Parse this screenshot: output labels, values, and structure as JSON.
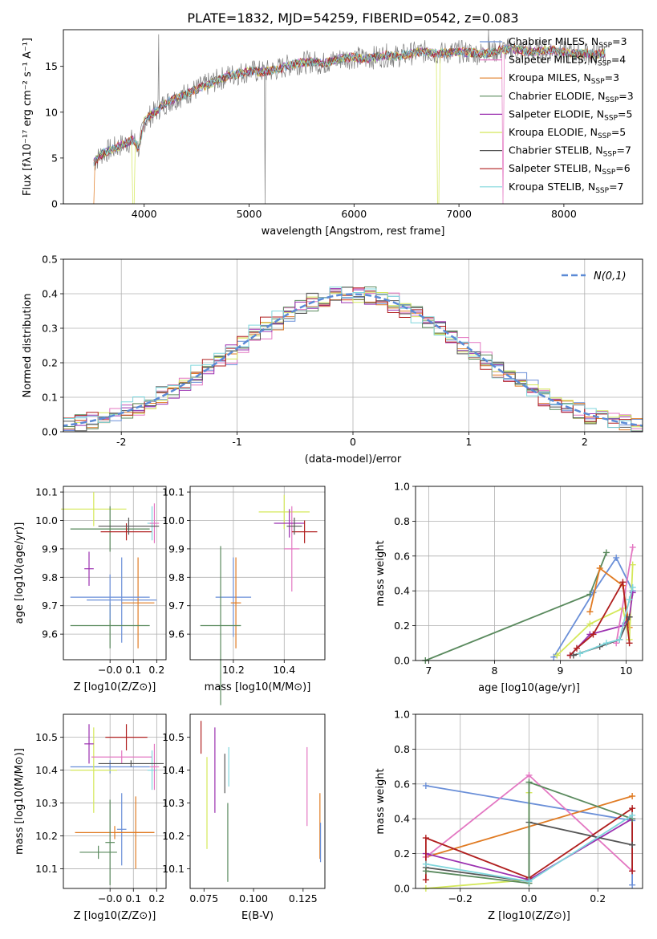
{
  "figure": {
    "title": "PLATE=1832, MJD=54259, FIBERID=0542, z=0.083"
  },
  "chart_data": [
    {
      "id": "spectrum",
      "type": "line",
      "title": "PLATE=1832, MJD=54259, FIBERID=0542, z=0.083",
      "xlabel": "wavelength [Angstrom, rest frame]",
      "ylabel": "Flux [fλ10⁻¹⁷ erg cm⁻² s⁻¹ A⁻¹]",
      "xlim": [
        3230,
        8750
      ],
      "ylim": [
        0,
        19
      ],
      "xticks": [
        4000,
        5000,
        6000,
        7000,
        8000
      ],
      "yticks": [
        0,
        5,
        10,
        15
      ],
      "grid": false,
      "legend_position": "right",
      "observed": {
        "x": [
          3520,
          3600,
          3700,
          3800,
          3900,
          3950,
          4000,
          4100,
          4200,
          4300,
          4400,
          4500,
          4600,
          4700,
          4800,
          4900,
          5000,
          5100,
          5200,
          5300,
          5400,
          5500,
          5600,
          5700,
          5800,
          5900,
          6000,
          6100,
          6200,
          6300,
          6400,
          6500,
          6600,
          6700,
          6800,
          6900,
          7000,
          7100,
          7200,
          7300,
          7400,
          7500,
          7600,
          7700,
          7800,
          7900,
          8000,
          8100,
          8200,
          8300,
          8400
        ],
        "y": [
          4.5,
          5.5,
          6.0,
          6.5,
          7.0,
          6.0,
          9.0,
          10.0,
          11.0,
          11.5,
          12.0,
          12.5,
          13.0,
          13.5,
          14.0,
          14.2,
          14.5,
          14.4,
          14.5,
          14.8,
          15.2,
          15.4,
          15.5,
          15.3,
          15.6,
          15.9,
          16.0,
          15.8,
          16.0,
          16.2,
          16.1,
          16.3,
          16.5,
          16.6,
          16.4,
          16.5,
          16.6,
          16.5,
          16.4,
          16.5,
          16.8,
          16.9,
          16.7,
          16.6,
          16.7,
          16.8,
          16.5,
          16.4,
          16.4,
          16.3,
          16.5
        ]
      },
      "series": [
        {
          "name": "Chabrier MILES, N_SSP=3",
          "nssp": "3",
          "label": "Chabrier MILES, N",
          "color": "#6a8fd8"
        },
        {
          "name": "Salpeter MILES, N_SSP=4",
          "nssp": "4",
          "label": "Salpeter MILES, N",
          "color": "#e377c2"
        },
        {
          "name": "Kroupa MILES, N_SSP=3",
          "nssp": "3",
          "label": "Kroupa MILES, N",
          "color": "#e07b23"
        },
        {
          "name": "Chabrier ELODIE, N_SSP=3",
          "nssp": "3",
          "label": "Chabrier ELODIE, N",
          "color": "#5a8a5e"
        },
        {
          "name": "Salpeter ELODIE, N_SSP=5",
          "nssp": "5",
          "label": "Salpeter ELODIE, N",
          "color": "#9b30b0"
        },
        {
          "name": "Kroupa ELODIE, N_SSP=5",
          "nssp": "5",
          "label": "Kroupa ELODIE, N",
          "color": "#d4e85a"
        },
        {
          "name": "Chabrier STELIB, N_SSP=7",
          "nssp": "7",
          "label": "Chabrier STELIB, N",
          "color": "#555555"
        },
        {
          "name": "Salpeter STELIB, N_SSP=6",
          "nssp": "6",
          "label": "Salpeter STELIB, N",
          "color": "#b01f1f"
        },
        {
          "name": "Kroupa STELIB, N_SSP=7",
          "nssp": "7",
          "label": "Kroupa STELIB, N",
          "color": "#7fd6dc"
        }
      ]
    },
    {
      "id": "residuals",
      "type": "line",
      "xlabel": "(data-model)/error",
      "ylabel": "Normed distribution",
      "xlim": [
        -2.5,
        2.5
      ],
      "ylim": [
        0,
        0.5
      ],
      "xticks": [
        -2,
        -1,
        0,
        1,
        2
      ],
      "yticks": [
        0.0,
        0.1,
        0.2,
        0.3,
        0.4,
        0.5
      ],
      "grid": true,
      "legend": "N(0,1)",
      "legend_position": "top-right",
      "reference_curve": {
        "name": "N(0,1)",
        "color": "#5b8ad6",
        "mean": 0,
        "sigma": 1
      }
    },
    {
      "id": "age-vs-Z",
      "type": "scatter",
      "xlabel": "Z [log10(Z/Z⊙)]",
      "ylabel": "age [log10(age/yr)]",
      "xlim": [
        -0.2,
        0.24
      ],
      "ylim": [
        9.51,
        10.12
      ],
      "xticks": [
        -0.0,
        0.1,
        0.2
      ],
      "xtick_labels": [
        "−0.0",
        "0.1",
        "0.2"
      ],
      "yticks": [
        9.6,
        9.7,
        9.8,
        9.9,
        10.0,
        10.1
      ],
      "grid": true,
      "points": [
        {
          "x": 0.05,
          "y": 9.72,
          "xerr": 0.15,
          "yerr": 0.15,
          "color": "#6a8fd8"
        },
        {
          "x": 0.12,
          "y": 9.71,
          "xerr": 0.07,
          "yerr": 0.16,
          "color": "#e07b23"
        },
        {
          "x": 0.0,
          "y": 9.63,
          "xerr": 0.17,
          "yerr": 0.08,
          "color": "#5a8a5e"
        },
        {
          "x": 0.0,
          "y": 9.73,
          "xerr": 0.17,
          "yerr": 0.08,
          "color": "#6a8fd8"
        },
        {
          "x": -0.07,
          "y": 10.04,
          "xerr": 0.14,
          "yerr": 0.06,
          "color": "#d4e85a"
        },
        {
          "x": 0.0,
          "y": 9.97,
          "xerr": 0.17,
          "yerr": 0.08,
          "color": "#5a8a5e"
        },
        {
          "x": -0.09,
          "y": 9.83,
          "xerr": 0.02,
          "yerr": 0.06,
          "color": "#9b30b0"
        },
        {
          "x": 0.07,
          "y": 9.96,
          "xerr": 0.11,
          "yerr": 0.03,
          "color": "#b01f1f"
        },
        {
          "x": 0.18,
          "y": 9.99,
          "xerr": 0.02,
          "yerr": 0.06,
          "color": "#7fd6dc"
        },
        {
          "x": 0.19,
          "y": 9.99,
          "xerr": 0.02,
          "yerr": 0.07,
          "color": "#e377c2"
        },
        {
          "x": 0.08,
          "y": 9.98,
          "xerr": 0.13,
          "yerr": 0.03,
          "color": "#555555"
        }
      ]
    },
    {
      "id": "age-vs-mass",
      "type": "scatter",
      "xlabel": "mass [log10(M/M⊙)]",
      "xlim": [
        10.03,
        10.56
      ],
      "ylim": [
        9.51,
        10.12
      ],
      "xticks": [
        10.2,
        10.4
      ],
      "yticks": [
        9.6,
        9.7,
        9.8,
        9.9,
        10.0,
        10.1
      ],
      "grid": true,
      "points": [
        {
          "x": 10.2,
          "y": 9.73,
          "xerr": 0.07,
          "yerr": 0.14,
          "color": "#6a8fd8"
        },
        {
          "x": 10.21,
          "y": 9.71,
          "xerr": 0.02,
          "yerr": 0.16,
          "color": "#e07b23"
        },
        {
          "x": 10.15,
          "y": 9.63,
          "xerr": 0.08,
          "yerr": 0.28,
          "color": "#5a8a5e"
        },
        {
          "x": 10.4,
          "y": 10.03,
          "xerr": 0.1,
          "yerr": 0.06,
          "color": "#d4e85a"
        },
        {
          "x": 10.43,
          "y": 9.9,
          "xerr": 0.03,
          "yerr": 0.15,
          "color": "#e377c2"
        },
        {
          "x": 10.42,
          "y": 9.99,
          "xerr": 0.06,
          "yerr": 0.05,
          "color": "#9b30b0"
        },
        {
          "x": 10.48,
          "y": 9.96,
          "xerr": 0.05,
          "yerr": 0.04,
          "color": "#b01f1f"
        },
        {
          "x": 10.44,
          "y": 9.98,
          "xerr": 0.03,
          "yerr": 0.03,
          "color": "#555555"
        }
      ]
    },
    {
      "id": "massweight-vs-age",
      "type": "line",
      "xlabel": "age [log10(age/yr)]",
      "ylabel": "mass weight",
      "xlim": [
        6.8,
        10.25
      ],
      "ylim": [
        0,
        1.0
      ],
      "xticks": [
        7,
        8,
        9,
        10
      ],
      "yticks": [
        0.0,
        0.2,
        0.4,
        0.6,
        0.8,
        1.0
      ],
      "grid": true,
      "series": [
        {
          "color": "#5a8a5e",
          "x": [
            6.95,
            9.45,
            9.7
          ],
          "y": [
            0.0,
            0.38,
            0.62
          ]
        },
        {
          "color": "#6a8fd8",
          "x": [
            8.9,
            9.5,
            9.85,
            10.1
          ],
          "y": [
            0.02,
            0.39,
            0.59,
            0.4
          ]
        },
        {
          "color": "#e07b23",
          "x": [
            9.45,
            9.6,
            9.95,
            10.05
          ],
          "y": [
            0.28,
            0.53,
            0.43,
            0.19
          ]
        },
        {
          "color": "#d4e85a",
          "x": [
            8.95,
            9.45,
            9.95,
            10.05,
            10.1
          ],
          "y": [
            0.03,
            0.21,
            0.3,
            0.12,
            0.55
          ]
        },
        {
          "color": "#9b30b0",
          "x": [
            9.15,
            9.45,
            9.95,
            10.05,
            10.1
          ],
          "y": [
            0.03,
            0.15,
            0.2,
            0.25,
            0.39
          ]
        },
        {
          "color": "#e377c2",
          "x": [
            9.85,
            10.1
          ],
          "y": [
            0.1,
            0.65
          ]
        },
        {
          "color": "#b01f1f",
          "x": [
            9.15,
            9.25,
            9.5,
            9.95,
            10.05
          ],
          "y": [
            0.03,
            0.07,
            0.15,
            0.45,
            0.1
          ]
        },
        {
          "color": "#555555",
          "x": [
            9.2,
            9.6,
            9.9,
            10.05
          ],
          "y": [
            0.03,
            0.08,
            0.12,
            0.25
          ]
        },
        {
          "color": "#7fd6dc",
          "x": [
            9.3,
            9.7,
            9.9,
            10.05,
            10.1
          ],
          "y": [
            0.04,
            0.1,
            0.12,
            0.35,
            0.42
          ]
        }
      ]
    },
    {
      "id": "mass-vs-Z",
      "type": "scatter",
      "xlabel": "Z [log10(Z/Z⊙)]",
      "ylabel": "mass [log10(M/M⊙)]",
      "xlim": [
        -0.2,
        0.24
      ],
      "ylim": [
        10.04,
        10.57
      ],
      "xticks": [
        -0.0,
        0.1,
        0.2
      ],
      "xtick_labels": [
        "−0.0",
        "0.1",
        "0.2"
      ],
      "yticks": [
        10.1,
        10.2,
        10.3,
        10.4,
        10.5
      ],
      "grid": true,
      "points": [
        {
          "x": 0.05,
          "y": 10.22,
          "xerr": 0.02,
          "yerr": 0.11,
          "color": "#6a8fd8"
        },
        {
          "x": 0.11,
          "y": 10.21,
          "xerr": 0.08,
          "yerr": 0.11,
          "color": "#e07b23"
        },
        {
          "x": 0.02,
          "y": 10.21,
          "xerr": 0.17,
          "yerr": 0.02,
          "color": "#e07b23"
        },
        {
          "x": -0.05,
          "y": 10.15,
          "xerr": 0.08,
          "yerr": 0.02,
          "color": "#5a8a5e"
        },
        {
          "x": 0.0,
          "y": 10.18,
          "xerr": 0.02,
          "yerr": 0.13,
          "color": "#5a8a5e"
        },
        {
          "x": 0.0,
          "y": 10.41,
          "xerr": 0.17,
          "yerr": 0.02,
          "color": "#6a8fd8"
        },
        {
          "x": -0.07,
          "y": 10.4,
          "xerr": 0.1,
          "yerr": 0.13,
          "color": "#d4e85a"
        },
        {
          "x": -0.09,
          "y": 10.48,
          "xerr": 0.02,
          "yerr": 0.06,
          "color": "#9b30b0"
        },
        {
          "x": 0.07,
          "y": 10.5,
          "xerr": 0.09,
          "yerr": 0.04,
          "color": "#b01f1f"
        },
        {
          "x": 0.05,
          "y": 10.44,
          "xerr": 0.13,
          "yerr": 0.02,
          "color": "#e377c2"
        },
        {
          "x": 0.18,
          "y": 10.4,
          "xerr": 0.02,
          "yerr": 0.06,
          "color": "#7fd6dc"
        },
        {
          "x": 0.19,
          "y": 10.41,
          "xerr": 0.02,
          "yerr": 0.07,
          "color": "#e377c2"
        },
        {
          "x": 0.09,
          "y": 10.42,
          "xerr": 0.14,
          "yerr": 0.01,
          "color": "#555555"
        }
      ]
    },
    {
      "id": "mass-vs-EBV",
      "type": "scatter",
      "xlabel": "E(B-V)",
      "xlim": [
        0.068,
        0.136
      ],
      "ylim": [
        10.04,
        10.57
      ],
      "xticks": [
        0.075,
        0.1,
        0.125
      ],
      "xtick_labels": [
        "0.075",
        "0.100",
        "0.125"
      ],
      "yticks": [
        10.1,
        10.2,
        10.3,
        10.4,
        10.5
      ],
      "grid": false,
      "points": [
        {
          "x": 0.0735,
          "y": 10.5,
          "yerr": 0.05,
          "color": "#b01f1f"
        },
        {
          "x": 0.0765,
          "y": 10.3,
          "yerr": 0.14,
          "color": "#d4e85a"
        },
        {
          "x": 0.0805,
          "y": 10.4,
          "yerr": 0.13,
          "color": "#9b30b0"
        },
        {
          "x": 0.0855,
          "y": 10.39,
          "yerr": 0.06,
          "color": "#555555"
        },
        {
          "x": 0.087,
          "y": 10.18,
          "yerr": 0.12,
          "color": "#5a8a5e"
        },
        {
          "x": 0.0875,
          "y": 10.41,
          "yerr": 0.06,
          "color": "#7fd6dc"
        },
        {
          "x": 0.127,
          "y": 10.35,
          "yerr": 0.12,
          "color": "#e377c2"
        },
        {
          "x": 0.1335,
          "y": 10.23,
          "yerr": 0.1,
          "color": "#e07b23"
        },
        {
          "x": 0.1338,
          "y": 10.18,
          "yerr": 0.06,
          "color": "#6a8fd8"
        }
      ]
    },
    {
      "id": "massweight-vs-Z",
      "type": "line",
      "xlabel": "Z [log10(Z/Z⊙)]",
      "ylabel": "mass weight",
      "xlim": [
        -0.33,
        0.33
      ],
      "ylim": [
        0,
        1.0
      ],
      "xticks": [
        -0.2,
        0.0,
        0.2
      ],
      "xtick_labels": [
        "−0.2",
        "0.0",
        "0.2"
      ],
      "yticks": [
        0.0,
        0.2,
        0.4,
        0.6,
        0.8,
        1.0
      ],
      "grid": true,
      "series": [
        {
          "color": "#6a8fd8",
          "x": [
            -0.3,
            0.3,
            0.3
          ],
          "y": [
            0.59,
            0.39,
            0.02
          ]
        },
        {
          "color": "#e07b23",
          "x": [
            -0.3,
            0.3
          ],
          "y": [
            0.18,
            0.53
          ]
        },
        {
          "color": "#e377c2",
          "x": [
            -0.3,
            0.0,
            0.3
          ],
          "y": [
            0.18,
            0.65,
            0.1
          ]
        },
        {
          "color": "#d4e85a",
          "x": [
            -0.3,
            0.0,
            0.0
          ],
          "y": [
            0.0,
            0.05,
            0.55
          ]
        },
        {
          "color": "#9b30b0",
          "x": [
            -0.3,
            0.0,
            0.3
          ],
          "y": [
            0.2,
            0.05,
            0.4
          ]
        },
        {
          "color": "#b01f1f",
          "x": [
            -0.3,
            -0.3,
            0.0,
            0.3,
            0.3
          ],
          "y": [
            0.05,
            0.29,
            0.06,
            0.46,
            0.1
          ]
        },
        {
          "color": "#555555",
          "x": [
            -0.3,
            0.0,
            0.0,
            0.3
          ],
          "y": [
            0.12,
            0.04,
            0.38,
            0.25
          ]
        },
        {
          "color": "#5a8a5e",
          "x": [
            -0.3,
            0.0,
            0.0,
            0.3
          ],
          "y": [
            0.1,
            0.03,
            0.61,
            0.4
          ]
        },
        {
          "color": "#7fd6dc",
          "x": [
            -0.3,
            0.0,
            0.3
          ],
          "y": [
            0.14,
            0.04,
            0.42
          ]
        }
      ]
    }
  ]
}
